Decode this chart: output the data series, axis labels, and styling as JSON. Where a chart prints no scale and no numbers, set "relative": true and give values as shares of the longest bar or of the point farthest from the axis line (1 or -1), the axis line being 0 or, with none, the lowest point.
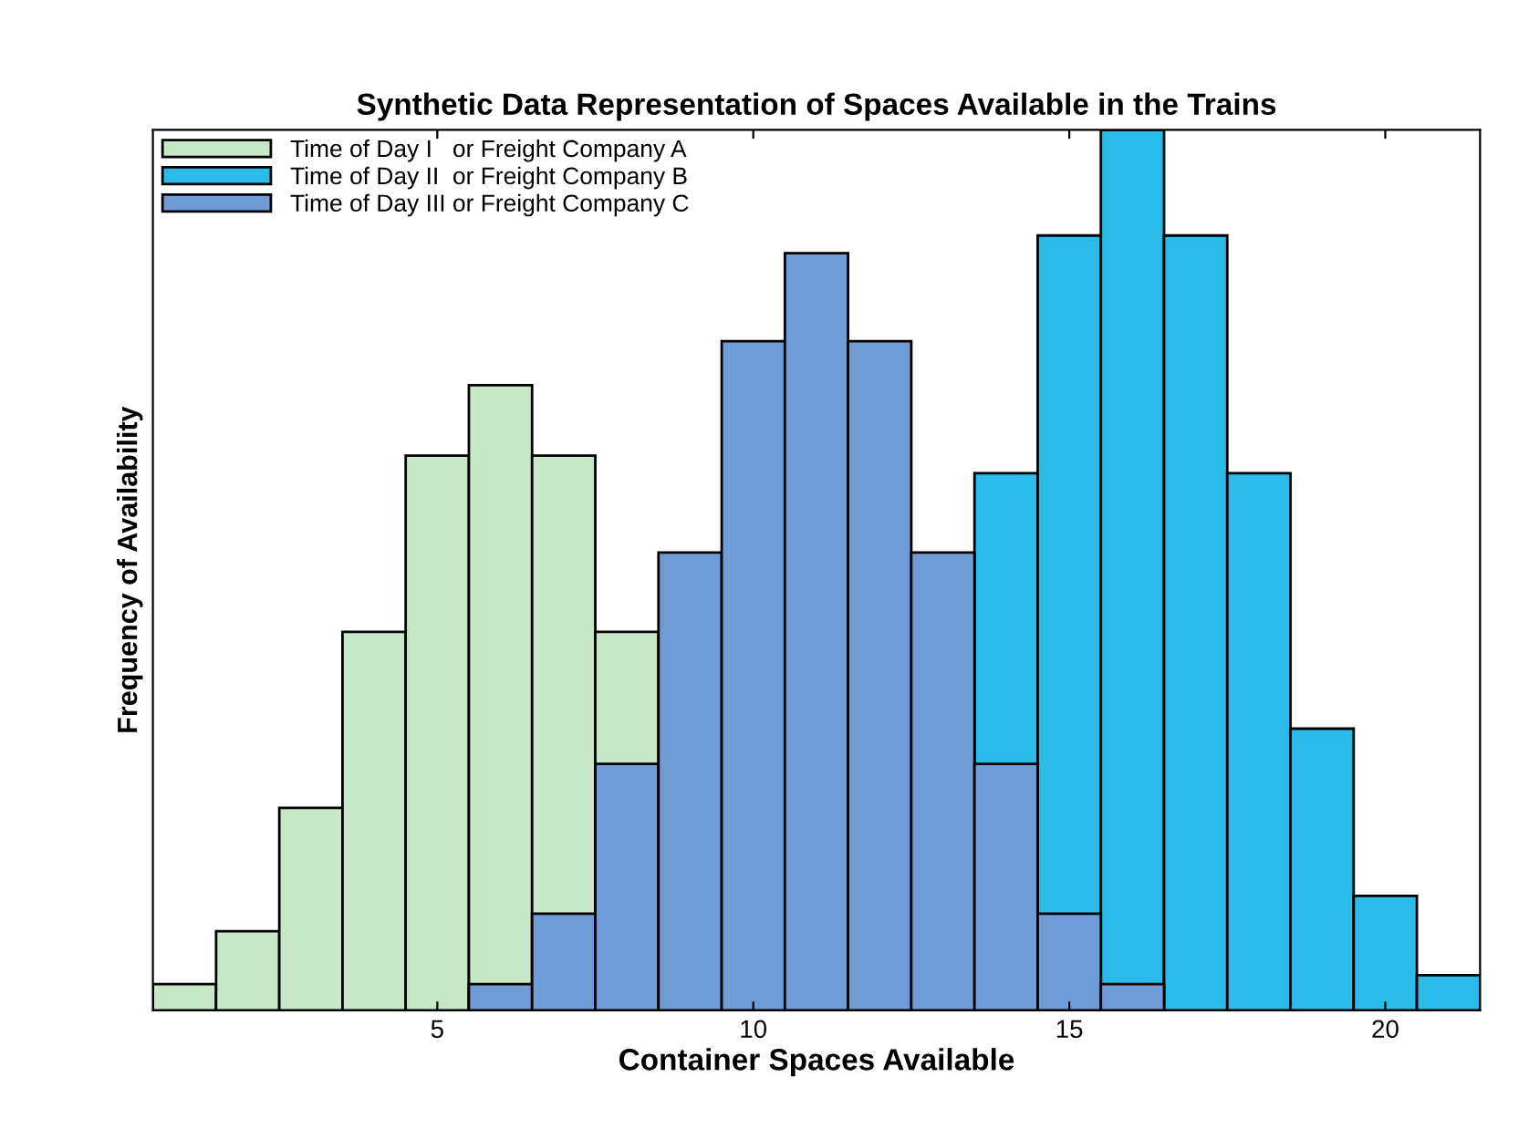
{
  "chart_data": {
    "type": "bar",
    "title": "Synthetic Data Representation of Spaces Available in the Trains",
    "xlabel": "Container Spaces Available",
    "ylabel": "Frequency of Availability",
    "relative": true,
    "series": [
      {
        "name": "Time of Day I   or Freight Company A",
        "color": "#c8e6c8",
        "x": [
          1,
          2,
          3,
          4,
          5,
          6,
          7,
          8
        ],
        "values": [
          0.03,
          0.09,
          0.23,
          0.43,
          0.63,
          0.71,
          0.63,
          0.43
        ]
      },
      {
        "name": "Time of Day II  or Freight Company B",
        "color": "#2bbbe8",
        "x": [
          14,
          15,
          16,
          17,
          18,
          19,
          20,
          21
        ],
        "values": [
          0.61,
          0.88,
          1,
          0.88,
          0.61,
          0.32,
          0.13,
          0.04
        ]
      },
      {
        "name": "Time of Day III or Freight Company C",
        "color": "#6f9bd6",
        "x": [
          6,
          7,
          8,
          9,
          10,
          11,
          12,
          13,
          14,
          15,
          16
        ],
        "values": [
          0.03,
          0.11,
          0.28,
          0.52,
          0.76,
          0.86,
          0.76,
          0.52,
          0.28,
          0.11,
          0.03
        ]
      }
    ],
    "xlim": [
      0.5,
      21.5
    ],
    "xticks": [
      5,
      10,
      15,
      20
    ],
    "legend": "top left"
  }
}
